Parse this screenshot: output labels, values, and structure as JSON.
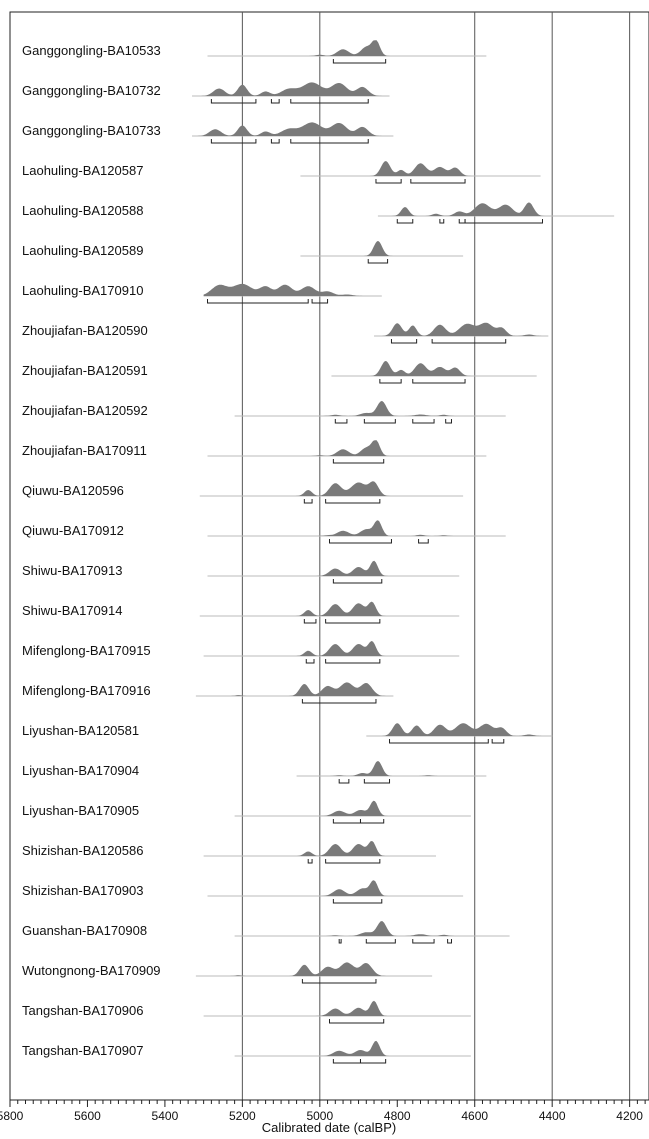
{
  "chart_data": {
    "type": "area",
    "title": "",
    "xlabel": "Calibrated date (calBP)",
    "ylabel": "",
    "xlim": [
      5800,
      4150
    ],
    "x_reversed": true,
    "x_ticks": [
      5800,
      5600,
      5400,
      5200,
      5000,
      4800,
      4600,
      4400,
      4200
    ],
    "x_tick_labels": [
      "5800",
      "5600",
      "5400",
      "5200",
      "5000",
      "4800",
      "4600",
      "4400",
      "4200"
    ],
    "gridlines_at": [
      5200,
      5000,
      4600,
      4400,
      4200
    ],
    "grid": true,
    "colors": {
      "distribution": "#7a7a7a",
      "baseline": "#bbbbbb",
      "gridline": "#555555",
      "axis": "#222222",
      "range_bracket": "#222222"
    },
    "series": [
      {
        "name": "Ganggongling-BA10533",
        "range": [
          5290,
          4570
        ],
        "peaks": [
          [
            5000,
            0.08,
            10
          ],
          [
            4940,
            0.45,
            15
          ],
          [
            4880,
            0.6,
            14
          ],
          [
            4855,
            1.0,
            10
          ]
        ],
        "brackets": [
          [
            4965,
            4830
          ]
        ]
      },
      {
        "name": "Ganggongling-BA10732",
        "range": [
          5330,
          4820
        ],
        "peaks": [
          [
            5260,
            0.5,
            15
          ],
          [
            5200,
            0.75,
            12
          ],
          [
            5140,
            0.3,
            12
          ],
          [
            5080,
            0.45,
            20
          ],
          [
            5020,
            0.9,
            25
          ],
          [
            4950,
            0.85,
            20
          ],
          [
            4890,
            0.6,
            15
          ]
        ],
        "brackets": [
          [
            5280,
            5165
          ],
          [
            5125,
            5105
          ],
          [
            5075,
            4875
          ]
        ]
      },
      {
        "name": "Ganggongling-BA10733",
        "range": [
          5330,
          4810
        ],
        "peaks": [
          [
            5270,
            0.45,
            15
          ],
          [
            5200,
            0.7,
            12
          ],
          [
            5140,
            0.3,
            12
          ],
          [
            5080,
            0.45,
            20
          ],
          [
            5020,
            0.9,
            25
          ],
          [
            4950,
            0.85,
            20
          ],
          [
            4890,
            0.6,
            15
          ]
        ],
        "brackets": [
          [
            5280,
            5165
          ],
          [
            5125,
            5105
          ],
          [
            5075,
            4875
          ]
        ]
      },
      {
        "name": "Laohuling-BA120587",
        "range": [
          5050,
          4430
        ],
        "peaks": [
          [
            4830,
            1.0,
            12
          ],
          [
            4790,
            0.4,
            10
          ],
          [
            4740,
            0.85,
            15
          ],
          [
            4690,
            0.6,
            15
          ],
          [
            4650,
            0.55,
            12
          ]
        ],
        "brackets": [
          [
            4855,
            4790
          ],
          [
            4765,
            4625
          ]
        ]
      },
      {
        "name": "Laohuling-BA120588",
        "range": [
          4850,
          4240
        ],
        "peaks": [
          [
            4780,
            0.6,
            10
          ],
          [
            4700,
            0.15,
            10
          ],
          [
            4640,
            0.3,
            12
          ],
          [
            4580,
            0.85,
            20
          ],
          [
            4520,
            0.75,
            18
          ],
          [
            4460,
            0.9,
            12
          ]
        ],
        "brackets": [
          [
            4800,
            4760
          ],
          [
            4690,
            4680
          ],
          [
            4640,
            4625
          ],
          [
            4625,
            4425
          ]
        ]
      },
      {
        "name": "Laohuling-BA120589",
        "range": [
          5050,
          4630
        ],
        "peaks": [
          [
            4850,
            1.0,
            11
          ]
        ],
        "brackets": [
          [
            4875,
            4825
          ]
        ]
      },
      {
        "name": "Laohuling-BA170910",
        "range": [
          5300,
          4840
        ],
        "peaks": [
          [
            5260,
            0.7,
            20
          ],
          [
            5200,
            0.8,
            25
          ],
          [
            5140,
            0.6,
            15
          ],
          [
            5090,
            0.75,
            18
          ],
          [
            5030,
            0.65,
            18
          ],
          [
            4980,
            0.3,
            15
          ],
          [
            4930,
            0.1,
            15
          ]
        ],
        "brackets": [
          [
            5290,
            5030
          ],
          [
            5020,
            4980
          ]
        ]
      },
      {
        "name": "Zhoujiafan-BA120590",
        "range": [
          4860,
          4410
        ],
        "peaks": [
          [
            4800,
            0.85,
            12
          ],
          [
            4760,
            0.7,
            10
          ],
          [
            4690,
            0.75,
            15
          ],
          [
            4620,
            0.8,
            20
          ],
          [
            4570,
            0.85,
            18
          ],
          [
            4530,
            0.5,
            12
          ],
          [
            4460,
            0.1,
            12
          ]
        ],
        "brackets": [
          [
            4815,
            4750
          ],
          [
            4710,
            4520
          ]
        ]
      },
      {
        "name": "Zhoujiafan-BA120591",
        "range": [
          4970,
          4440
        ],
        "peaks": [
          [
            4830,
            1.0,
            12
          ],
          [
            4790,
            0.4,
            10
          ],
          [
            4740,
            0.85,
            15
          ],
          [
            4690,
            0.6,
            15
          ],
          [
            4650,
            0.55,
            12
          ]
        ],
        "brackets": [
          [
            4845,
            4790
          ],
          [
            4760,
            4625
          ]
        ]
      },
      {
        "name": "Zhoujiafan-BA120592",
        "range": [
          5220,
          4520
        ],
        "peaks": [
          [
            4960,
            0.08,
            12
          ],
          [
            4880,
            0.2,
            15
          ],
          [
            4840,
            1.0,
            12
          ],
          [
            4740,
            0.1,
            15
          ],
          [
            4680,
            0.08,
            10
          ]
        ],
        "brackets": [
          [
            4960,
            4930
          ],
          [
            4885,
            4805
          ],
          [
            4760,
            4705
          ],
          [
            4675,
            4660
          ]
        ]
      },
      {
        "name": "Zhoujiafan-BA170911",
        "range": [
          5290,
          4570
        ],
        "peaks": [
          [
            5000,
            0.05,
            10
          ],
          [
            4940,
            0.45,
            15
          ],
          [
            4880,
            0.55,
            14
          ],
          [
            4855,
            1.0,
            10
          ]
        ],
        "brackets": [
          [
            4965,
            4835
          ]
        ]
      },
      {
        "name": "Qiuwu-BA120596",
        "range": [
          5310,
          4630
        ],
        "peaks": [
          [
            5030,
            0.4,
            10
          ],
          [
            4960,
            0.85,
            15
          ],
          [
            4900,
            0.9,
            20
          ],
          [
            4860,
            0.85,
            12
          ]
        ],
        "brackets": [
          [
            5040,
            5020
          ],
          [
            4985,
            4845
          ]
        ]
      },
      {
        "name": "Qiuwu-BA170912",
        "range": [
          5290,
          4520
        ],
        "peaks": [
          [
            4980,
            0.05,
            10
          ],
          [
            4940,
            0.35,
            15
          ],
          [
            4880,
            0.45,
            15
          ],
          [
            4850,
            1.0,
            10
          ],
          [
            4740,
            0.08,
            10
          ],
          [
            4680,
            0.05,
            10
          ]
        ],
        "brackets": [
          [
            4975,
            4815
          ],
          [
            4745,
            4720
          ]
        ]
      },
      {
        "name": "Shiwu-BA170913",
        "range": [
          5290,
          4640
        ],
        "peaks": [
          [
            4960,
            0.5,
            15
          ],
          [
            4900,
            0.6,
            15
          ],
          [
            4860,
            1.0,
            10
          ]
        ],
        "brackets": [
          [
            4965,
            4840
          ]
        ]
      },
      {
        "name": "Shiwu-BA170914",
        "range": [
          5310,
          4640
        ],
        "peaks": [
          [
            5030,
            0.4,
            10
          ],
          [
            4960,
            0.8,
            15
          ],
          [
            4900,
            0.85,
            15
          ],
          [
            4865,
            0.9,
            10
          ]
        ],
        "brackets": [
          [
            5040,
            5010
          ],
          [
            4985,
            4845
          ]
        ]
      },
      {
        "name": "Mifenglong-BA170915",
        "range": [
          5300,
          4640
        ],
        "peaks": [
          [
            5030,
            0.35,
            10
          ],
          [
            4960,
            0.8,
            15
          ],
          [
            4900,
            0.8,
            15
          ],
          [
            4865,
            0.95,
            10
          ]
        ],
        "brackets": [
          [
            5035,
            5015
          ],
          [
            4985,
            4845
          ]
        ]
      },
      {
        "name": "Mifenglong-BA170916",
        "range": [
          5320,
          4810
        ],
        "peaks": [
          [
            5210,
            0.06,
            8
          ],
          [
            5040,
            0.8,
            12
          ],
          [
            4980,
            0.65,
            15
          ],
          [
            4930,
            0.9,
            18
          ],
          [
            4880,
            0.85,
            15
          ]
        ],
        "brackets": [
          [
            5045,
            4855
          ]
        ]
      },
      {
        "name": "Liyushan-BA120581",
        "range": [
          4880,
          4400
        ],
        "peaks": [
          [
            4800,
            0.85,
            12
          ],
          [
            4750,
            0.7,
            12
          ],
          [
            4690,
            0.75,
            15
          ],
          [
            4630,
            0.85,
            20
          ],
          [
            4570,
            0.8,
            18
          ],
          [
            4530,
            0.5,
            12
          ],
          [
            4460,
            0.1,
            12
          ]
        ],
        "brackets": [
          [
            4820,
            4565
          ],
          [
            4555,
            4525
          ]
        ]
      },
      {
        "name": "Liyushan-BA170904",
        "range": [
          5060,
          4570
        ],
        "peaks": [
          [
            4950,
            0.05,
            10
          ],
          [
            4890,
            0.2,
            12
          ],
          [
            4850,
            1.0,
            11
          ],
          [
            4720,
            0.05,
            10
          ]
        ],
        "brackets": [
          [
            4950,
            4925
          ],
          [
            4885,
            4820
          ]
        ]
      },
      {
        "name": "Liyushan-BA170905",
        "range": [
          5220,
          4610
        ],
        "peaks": [
          [
            4950,
            0.35,
            15
          ],
          [
            4895,
            0.4,
            15
          ],
          [
            4860,
            1.0,
            10
          ]
        ],
        "brackets": [
          [
            4965,
            4895
          ],
          [
            4895,
            4835
          ]
        ]
      },
      {
        "name": "Shizishan-BA120586",
        "range": [
          5300,
          4700
        ],
        "peaks": [
          [
            5030,
            0.3,
            10
          ],
          [
            4960,
            0.8,
            15
          ],
          [
            4900,
            0.8,
            15
          ],
          [
            4865,
            0.95,
            10
          ]
        ],
        "brackets": [
          [
            5030,
            5020
          ],
          [
            4985,
            4845
          ]
        ]
      },
      {
        "name": "Shizishan-BA170903",
        "range": [
          5290,
          4630
        ],
        "peaks": [
          [
            4950,
            0.45,
            15
          ],
          [
            4890,
            0.5,
            15
          ],
          [
            4860,
            1.0,
            10
          ]
        ],
        "brackets": [
          [
            4965,
            4840
          ]
        ]
      },
      {
        "name": "Guanshan-BA170908",
        "range": [
          5220,
          4510
        ],
        "peaks": [
          [
            4960,
            0.05,
            10
          ],
          [
            4880,
            0.25,
            15
          ],
          [
            4840,
            1.0,
            12
          ],
          [
            4740,
            0.12,
            15
          ],
          [
            4680,
            0.08,
            10
          ]
        ],
        "brackets": [
          [
            4950,
            4945
          ],
          [
            4880,
            4805
          ],
          [
            4760,
            4705
          ],
          [
            4670,
            4660
          ]
        ]
      },
      {
        "name": "Wutongnong-BA170909",
        "range": [
          5320,
          4710
        ],
        "peaks": [
          [
            5210,
            0.05,
            8
          ],
          [
            5040,
            0.75,
            12
          ],
          [
            4980,
            0.6,
            15
          ],
          [
            4930,
            0.9,
            18
          ],
          [
            4880,
            0.85,
            15
          ]
        ],
        "brackets": [
          [
            5045,
            4855
          ]
        ]
      },
      {
        "name": "Tangshan-BA170906",
        "range": [
          5300,
          4610
        ],
        "peaks": [
          [
            4960,
            0.5,
            15
          ],
          [
            4900,
            0.55,
            15
          ],
          [
            4860,
            1.0,
            10
          ]
        ],
        "brackets": [
          [
            4975,
            4835
          ]
        ]
      },
      {
        "name": "Tangshan-BA170907",
        "range": [
          5220,
          4610
        ],
        "peaks": [
          [
            4950,
            0.35,
            15
          ],
          [
            4895,
            0.4,
            15
          ],
          [
            4855,
            1.0,
            10
          ]
        ],
        "brackets": [
          [
            4965,
            4895
          ],
          [
            4895,
            4830
          ]
        ]
      }
    ]
  }
}
